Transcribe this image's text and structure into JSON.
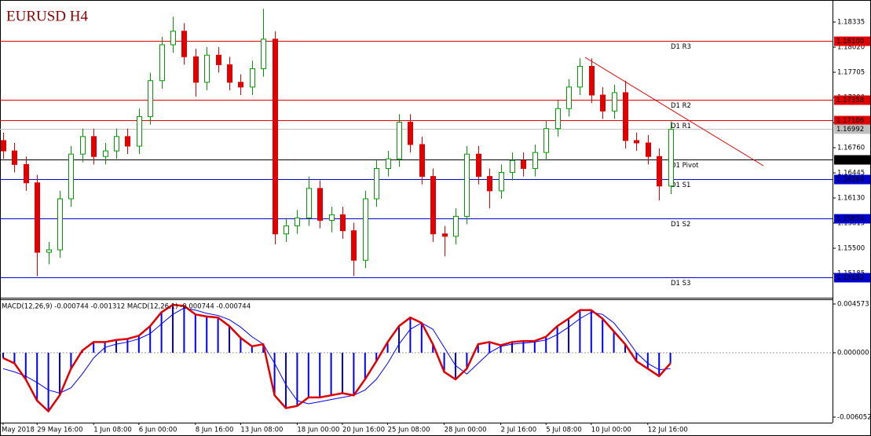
{
  "chart_data": {
    "type": "candlestick",
    "title": "EURUSD H4",
    "categories": [
      "May 2018",
      null,
      null,
      "29 May 16:00",
      null,
      null,
      null,
      null,
      "1 Jun 08:00",
      null,
      null,
      null,
      "6 Jun 00:00",
      null,
      null,
      null,
      null,
      "8 Jun 16:00",
      null,
      null,
      null,
      "13 Jun 08:00",
      null,
      null,
      null,
      null,
      "18 Jun 00:00",
      null,
      null,
      null,
      "20 Jun 16:00",
      null,
      null,
      null,
      "25 Jun 08:00",
      null,
      null,
      null,
      null,
      "28 Jun 00:00",
      null,
      null,
      null,
      null,
      "2 Jul 16:00",
      null,
      null,
      null,
      "5 Jul 08:00",
      null,
      null,
      null,
      "10 Jul 00:00",
      null,
      null,
      null,
      null,
      "12 Jul 16:00",
      null,
      null
    ],
    "open": [
      1.1685,
      1.1672,
      1.1655,
      1.1632,
      1.1545,
      1.1548,
      1.1612,
      1.1668,
      1.169,
      1.1665,
      1.1672,
      1.169,
      1.1678,
      1.1715,
      1.176,
      1.1805,
      1.1822,
      1.179,
      1.1758,
      1.1792,
      1.178,
      1.1758,
      1.1752,
      1.1775,
      1.1812,
      1.1568,
      1.1578,
      1.1588,
      1.1625,
      1.1585,
      1.1592,
      1.1572,
      1.1535,
      1.1612,
      1.165,
      1.1662,
      1.1708,
      1.168,
      1.164,
      1.1568,
      1.1565,
      1.159,
      1.1668,
      1.164,
      1.1622,
      1.1645,
      1.166,
      1.165,
      1.167,
      1.17,
      1.1725,
      1.1752,
      1.1778,
      1.1742,
      1.1722,
      1.1745,
      1.1685,
      1.1682,
      1.1665,
      1.1628
    ],
    "high": [
      1.1695,
      1.1682,
      1.1665,
      1.1642,
      1.1558,
      1.1622,
      1.1678,
      1.17,
      1.17,
      1.1682,
      1.17,
      1.17,
      1.1725,
      1.177,
      1.1815,
      1.184,
      1.1832,
      1.18,
      1.1802,
      1.1802,
      1.179,
      1.1768,
      1.1785,
      1.185,
      1.1822,
      1.1588,
      1.1598,
      1.164,
      1.1635,
      1.1602,
      1.1602,
      1.1582,
      1.1622,
      1.166,
      1.1672,
      1.1718,
      1.1718,
      1.169,
      1.165,
      1.1578,
      1.16,
      1.1678,
      1.1678,
      1.165,
      1.1655,
      1.167,
      1.167,
      1.168,
      1.171,
      1.1735,
      1.1762,
      1.1788,
      1.1788,
      1.1752,
      1.1755,
      1.176,
      1.1695,
      1.1692,
      1.1675,
      1.1709
    ],
    "low": [
      1.1662,
      1.1645,
      1.1622,
      1.1515,
      1.153,
      1.1538,
      1.1602,
      1.1658,
      1.1655,
      1.1655,
      1.1662,
      1.1668,
      1.1668,
      1.1705,
      1.175,
      1.1795,
      1.178,
      1.174,
      1.1748,
      1.177,
      1.1748,
      1.1742,
      1.1742,
      1.1765,
      1.1555,
      1.1558,
      1.1568,
      1.1578,
      1.1575,
      1.157,
      1.1562,
      1.1515,
      1.1525,
      1.1602,
      1.164,
      1.1652,
      1.167,
      1.163,
      1.1558,
      1.154,
      1.1555,
      1.158,
      1.163,
      1.16,
      1.1612,
      1.1635,
      1.164,
      1.164,
      1.166,
      1.169,
      1.1715,
      1.1742,
      1.1732,
      1.1712,
      1.1712,
      1.1675,
      1.1672,
      1.1655,
      1.161,
      1.1618
    ],
    "close": [
      1.1672,
      1.1655,
      1.1632,
      1.1545,
      1.1548,
      1.1612,
      1.1668,
      1.169,
      1.1665,
      1.1672,
      1.169,
      1.1678,
      1.1715,
      1.176,
      1.1805,
      1.1822,
      1.179,
      1.1758,
      1.1792,
      1.178,
      1.1758,
      1.1752,
      1.1775,
      1.1812,
      1.1568,
      1.1578,
      1.1588,
      1.1625,
      1.1585,
      1.1592,
      1.1572,
      1.1535,
      1.1612,
      1.165,
      1.1662,
      1.1708,
      1.168,
      1.164,
      1.1568,
      1.1565,
      1.159,
      1.1668,
      1.164,
      1.1622,
      1.1645,
      1.166,
      1.165,
      1.167,
      1.17,
      1.1725,
      1.1752,
      1.1778,
      1.1742,
      1.1722,
      1.1745,
      1.1685,
      1.1682,
      1.1665,
      1.1628,
      1.1699
    ],
    "up_color": "#009900",
    "down_color": "#e00000",
    "ylim": [
      1.1489,
      1.18611
    ],
    "yticks": [
      {
        "value": 1.18335,
        "label": "1.18335"
      },
      {
        "value": 1.1802,
        "label": "1.18020"
      },
      {
        "value": 1.17705,
        "label": "1.17705"
      },
      {
        "value": 1.1739,
        "label": "1.17390"
      },
      {
        "value": 1.17075,
        "label": "1.17075"
      },
      {
        "value": 1.1676,
        "label": "1.16760"
      },
      {
        "value": 1.16445,
        "label": "1.16445"
      },
      {
        "value": 1.1613,
        "label": "1.16130"
      },
      {
        "value": 1.15815,
        "label": "1.15815"
      },
      {
        "value": 1.155,
        "label": "1.15500"
      },
      {
        "value": 1.15185,
        "label": "1.15185"
      }
    ],
    "levels": [
      {
        "name": "D1 R3",
        "value": 1.181,
        "label": "1.18100",
        "color": "#e00000"
      },
      {
        "name": "D1 R2",
        "value": 1.17358,
        "label": "1.17358",
        "color": "#e00000"
      },
      {
        "name": "D1 R1",
        "value": 1.17106,
        "label": "1.17106",
        "color": "#e00000"
      },
      {
        "name": "D1 Pivot",
        "value": 1.16616,
        "label": "1.16616",
        "color": "#000000"
      },
      {
        "name": "D1 S1",
        "value": 1.16364,
        "label": "1.16364",
        "color": "#0000cc"
      },
      {
        "name": "D1 S2",
        "value": 1.15874,
        "label": "1.15874",
        "color": "#0000cc"
      },
      {
        "name": "D1 S3",
        "value": 1.15132,
        "label": "1.15132",
        "color": "#0000cc"
      }
    ],
    "current_price": {
      "value": 1.16992,
      "label": "1.16992",
      "color": "#c0c0c0"
    },
    "macd": {
      "title": "MACD(12,26,9) -0.000744 -0.001312 MACD(12,26,1) -0.000744 -0.000744",
      "values": [
        -0.0005,
        -0.001,
        -0.0025,
        -0.0045,
        -0.0055,
        -0.004,
        -0.0015,
        0.0002,
        0.001,
        0.001,
        0.0012,
        0.0013,
        0.0016,
        0.0025,
        0.0038,
        0.0045,
        0.0044,
        0.0036,
        0.0034,
        0.0033,
        0.0025,
        0.0014,
        0.0006,
        0.0008,
        -0.004,
        -0.0052,
        -0.005,
        -0.0042,
        -0.0042,
        -0.004,
        -0.0038,
        -0.004,
        -0.0025,
        -0.0008,
        0.001,
        0.0025,
        0.0033,
        0.0028,
        0.0008,
        -0.0018,
        -0.0025,
        -0.0015,
        0.0008,
        0.001,
        0.0007,
        0.001,
        0.0011,
        0.0011,
        0.0015,
        0.0025,
        0.0032,
        0.004,
        0.004,
        0.0032,
        0.002,
        0.0008,
        -0.0008,
        -0.0015,
        -0.0022,
        -0.001
      ],
      "color": "#0000ff",
      "line_color": "#e00000",
      "signal": [
        -0.0015,
        -0.0018,
        -0.0022,
        -0.0028,
        -0.0035,
        -0.0038,
        -0.0033,
        -0.002,
        -0.0005,
        0.0005,
        0.0008,
        0.001,
        0.0013,
        0.0018,
        0.0027,
        0.0036,
        0.0042,
        0.004,
        0.0037,
        0.0035,
        0.0031,
        0.0024,
        0.0015,
        0.0008,
        -0.001,
        -0.003,
        -0.0045,
        -0.0048,
        -0.0046,
        -0.0044,
        -0.0042,
        -0.004,
        -0.0035,
        -0.0025,
        -0.001,
        0.0008,
        0.0022,
        0.0028,
        0.0022,
        0.0005,
        -0.0012,
        -0.002,
        -0.001,
        0.0,
        0.0006,
        0.0008,
        0.0009,
        0.001,
        0.0012,
        0.0017,
        0.0024,
        0.0032,
        0.0038,
        0.0036,
        0.0028,
        0.0015,
        0.0,
        -0.001,
        -0.0016,
        -0.0015
      ],
      "signal_color": "#0000ff",
      "ylim": [
        -0.006568,
        0.005016
      ],
      "yticks": [
        {
          "value": 0.004573,
          "label": "0.004573"
        },
        {
          "value": 0,
          "label": "0.000000"
        },
        {
          "value": -0.006052,
          "label": "-0.006052"
        }
      ]
    }
  }
}
